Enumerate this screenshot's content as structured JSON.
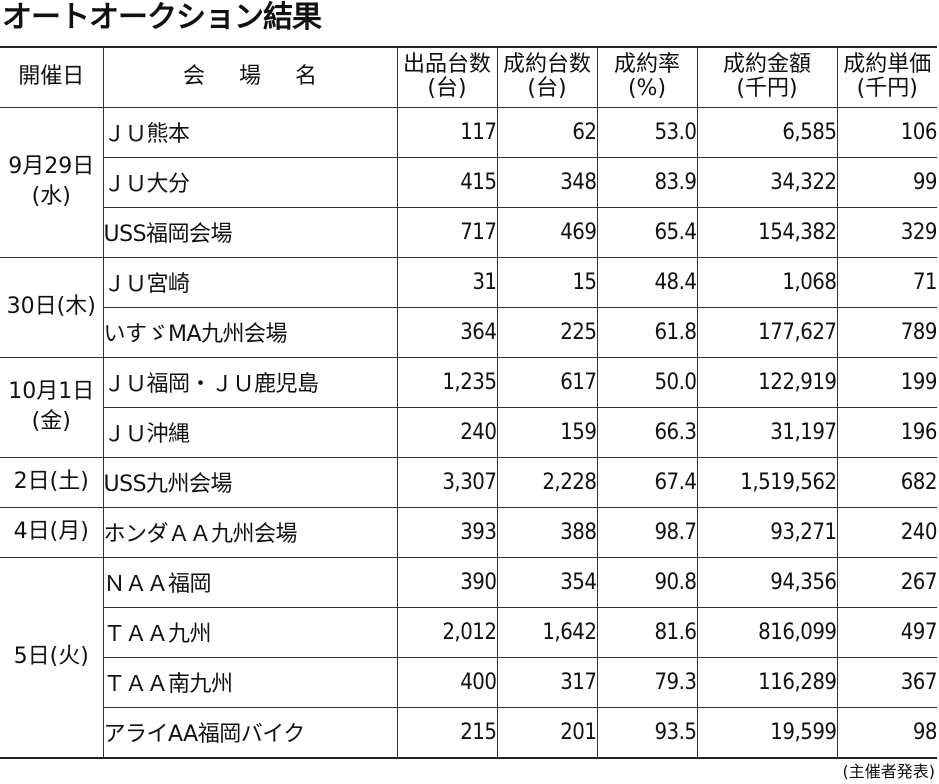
{
  "title": "オートオークション結果",
  "headers": {
    "date": "開催日",
    "venue": "会場名",
    "listed_1": "出品台数",
    "listed_2": "(台)",
    "sold_1": "成約台数",
    "sold_2": "(台)",
    "rate_1": "成約率",
    "rate_2": "(%)",
    "amount_1": "成約金額",
    "amount_2": "(千円)",
    "unit_1": "成約単価",
    "unit_2": "(千円)"
  },
  "dates": {
    "d1_line1": "9月29日",
    "d1_line2": "(水)",
    "d2": "30日(木)",
    "d3_line1": "10月1日",
    "d3_line2": "(金)",
    "d4": "2日(土)",
    "d5": "4日(月)",
    "d6": "5日(火)"
  },
  "rows": [
    {
      "venue": "ＪＵ熊本",
      "listed": "117",
      "sold": "62",
      "rate": "53.0",
      "amount": "6,585",
      "unit": "106"
    },
    {
      "venue": "ＪＵ大分",
      "listed": "415",
      "sold": "348",
      "rate": "83.9",
      "amount": "34,322",
      "unit": "99"
    },
    {
      "venue": "USS福岡会場",
      "listed": "717",
      "sold": "469",
      "rate": "65.4",
      "amount": "154,382",
      "unit": "329"
    },
    {
      "venue": "ＪＵ宮崎",
      "listed": "31",
      "sold": "15",
      "rate": "48.4",
      "amount": "1,068",
      "unit": "71"
    },
    {
      "venue": "いすゞMA九州会場",
      "listed": "364",
      "sold": "225",
      "rate": "61.8",
      "amount": "177,627",
      "unit": "789"
    },
    {
      "venue": "ＪＵ福岡・ＪＵ鹿児島",
      "listed": "1,235",
      "sold": "617",
      "rate": "50.0",
      "amount": "122,919",
      "unit": "199"
    },
    {
      "venue": "ＪＵ沖縄",
      "listed": "240",
      "sold": "159",
      "rate": "66.3",
      "amount": "31,197",
      "unit": "196"
    },
    {
      "venue": "USS九州会場",
      "listed": "3,307",
      "sold": "2,228",
      "rate": "67.4",
      "amount": "1,519,562",
      "unit": "682"
    },
    {
      "venue": "ホンダＡＡ九州会場",
      "listed": "393",
      "sold": "388",
      "rate": "98.7",
      "amount": "93,271",
      "unit": "240"
    },
    {
      "venue": "ＮＡＡ福岡",
      "listed": "390",
      "sold": "354",
      "rate": "90.8",
      "amount": "94,356",
      "unit": "267"
    },
    {
      "venue": "ＴＡＡ九州",
      "listed": "2,012",
      "sold": "1,642",
      "rate": "81.6",
      "amount": "816,099",
      "unit": "497"
    },
    {
      "venue": "ＴＡＡ南九州",
      "listed": "400",
      "sold": "317",
      "rate": "79.3",
      "amount": "116,289",
      "unit": "367"
    },
    {
      "venue": "アライAA福岡バイク",
      "listed": "215",
      "sold": "201",
      "rate": "93.5",
      "amount": "19,599",
      "unit": "98"
    }
  ],
  "source": "(主催者発表)"
}
